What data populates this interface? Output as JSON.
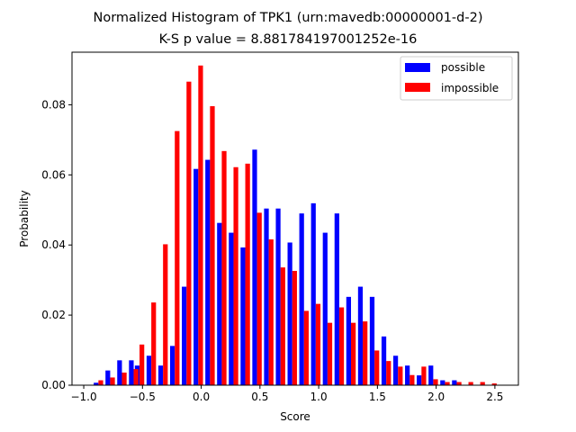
{
  "chart_data": {
    "type": "bar",
    "title": "Normalized Histogram of TPK1 (urn:mavedb:00000001-d-2)",
    "subtitle": "K-S p value = 8.881784197001252e-16",
    "xlabel": "Score",
    "ylabel": "Probability",
    "xlim": [
      -1.1,
      2.7
    ],
    "ylim": [
      0.0,
      0.095
    ],
    "xticks": [
      -1.0,
      -0.5,
      0.0,
      0.5,
      1.0,
      1.5,
      2.0,
      2.5
    ],
    "xtick_labels": [
      "−1.0",
      "−0.5",
      "0.0",
      "0.5",
      "1.0",
      "1.5",
      "2.0",
      "2.5"
    ],
    "yticks": [
      0.0,
      0.02,
      0.04,
      0.06,
      0.08
    ],
    "ytick_labels": [
      "0.00",
      "0.02",
      "0.04",
      "0.06",
      "0.08"
    ],
    "grid": false,
    "legend_position": "top-right",
    "bin_centers": [
      -0.875,
      -0.775,
      -0.675,
      -0.575,
      -0.525,
      -0.425,
      -0.325,
      -0.225,
      -0.125,
      -0.025,
      0.075,
      0.175,
      0.275,
      0.375,
      0.475,
      0.575,
      0.675,
      0.775,
      0.875,
      0.975,
      1.075,
      1.175,
      1.275,
      1.375,
      1.475,
      1.575,
      1.675,
      1.775,
      1.875,
      1.975,
      2.075,
      2.175,
      2.275,
      2.375,
      2.475
    ],
    "series": [
      {
        "name": "possible",
        "color": "#0000ff",
        "values": [
          0.0007,
          0.0042,
          0.0071,
          0.0071,
          0.0056,
          0.0084,
          0.0056,
          0.0112,
          0.0281,
          0.0617,
          0.0643,
          0.0463,
          0.0435,
          0.0393,
          0.0672,
          0.0504,
          0.0504,
          0.0407,
          0.049,
          0.0519,
          0.0435,
          0.049,
          0.0252,
          0.0281,
          0.0252,
          0.0139,
          0.0084,
          0.0056,
          0.0028,
          0.0056,
          0.0014,
          0.0014,
          0.0,
          0.0,
          0.0
        ]
      },
      {
        "name": "impossible",
        "color": "#ff0000",
        "values": [
          0.0014,
          0.0022,
          0.0036,
          0.0046,
          0.0116,
          0.0236,
          0.0402,
          0.0725,
          0.0866,
          0.0912,
          0.0796,
          0.0668,
          0.0622,
          0.0632,
          0.0492,
          0.0416,
          0.0336,
          0.0326,
          0.0212,
          0.0232,
          0.0178,
          0.0222,
          0.0178,
          0.0182,
          0.0099,
          0.0069,
          0.0053,
          0.0029,
          0.0053,
          0.0017,
          0.0009,
          0.0009,
          0.0009,
          0.0009,
          0.0005
        ]
      }
    ]
  }
}
